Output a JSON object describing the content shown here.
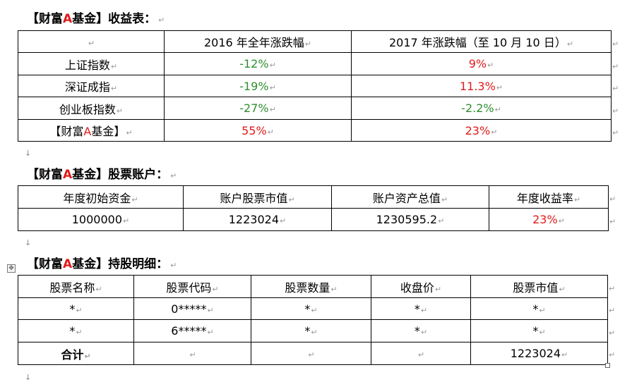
{
  "section1": {
    "heading_prefix": "【财富",
    "heading_highlight": "A",
    "heading_suffix": "基金】收益表：",
    "columns": [
      "",
      "2016 年全年涨跌幅",
      "2017 年涨跌幅（至 10 月 10 日）"
    ],
    "rows": [
      {
        "name": "上证指数",
        "y2016": "-12%",
        "y2017": "9%"
      },
      {
        "name": "深证成指",
        "y2016": "-19%",
        "y2017": "11.3%"
      },
      {
        "name": "创业板指数",
        "y2016": "-27%",
        "y2017": "-2.2%"
      },
      {
        "name_prefix": "【财富",
        "name_highlight": "A",
        "name_suffix": "基金】",
        "y2016": "55%",
        "y2017": "23%"
      }
    ]
  },
  "section2": {
    "heading_prefix": "【财富",
    "heading_highlight": "A",
    "heading_suffix": "基金】股票账户：",
    "columns": [
      "年度初始资金",
      "账户股票市值",
      "账户资产总值",
      "年度收益率"
    ],
    "values": [
      "1000000",
      "1223024",
      "1230595.2",
      "23%"
    ]
  },
  "section3": {
    "heading_prefix": "【财富",
    "heading_highlight": "A",
    "heading_suffix": "基金】持股明细：",
    "columns": [
      "股票名称",
      "股票代码",
      "股票数量",
      "收盘价",
      "股票市值"
    ],
    "rows": [
      [
        "*",
        "0*****",
        "*",
        "*",
        "*"
      ],
      [
        "*",
        "6*****",
        "*",
        "*",
        "*"
      ]
    ],
    "total": {
      "label": "合计",
      "market_value": "1223024"
    }
  },
  "marks": {
    "enter": "↵",
    "para": "↓"
  },
  "colors": {
    "positive": "#e21a1a",
    "negative": "#2f8f2f",
    "highlight": "#e21a1a"
  }
}
